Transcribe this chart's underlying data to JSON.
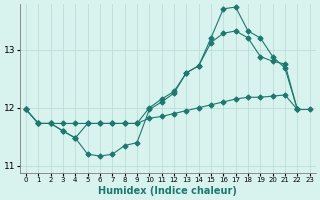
{
  "color": "#1a7a6e",
  "bg_color": "#d8f2ee",
  "grid_color": "#b8d8d4",
  "xlabel": "Humidex (Indice chaleur)",
  "xlim": [
    -0.5,
    23.5
  ],
  "ylim": [
    10.88,
    13.78
  ],
  "yticks": [
    11,
    12,
    13
  ],
  "xticks": [
    0,
    1,
    2,
    3,
    4,
    5,
    6,
    7,
    8,
    9,
    10,
    11,
    12,
    13,
    14,
    15,
    16,
    17,
    18,
    19,
    20,
    21,
    22,
    23
  ],
  "line_flat_x": [
    0,
    1,
    2,
    3,
    4,
    5,
    6,
    7,
    8,
    9,
    10,
    11,
    12,
    13,
    14,
    15,
    16,
    17,
    18,
    19,
    20,
    21,
    22,
    23
  ],
  "line_flat_y": [
    11.97,
    11.73,
    11.73,
    11.73,
    11.73,
    11.73,
    11.73,
    11.73,
    11.73,
    11.73,
    11.82,
    11.85,
    11.9,
    11.95,
    12.0,
    12.05,
    12.1,
    12.15,
    12.18,
    12.18,
    12.2,
    12.22,
    11.97,
    11.97
  ],
  "line_mid_x": [
    0,
    1,
    2,
    3,
    4,
    5,
    6,
    7,
    8,
    9,
    10,
    11,
    12,
    13,
    14,
    15,
    16,
    17,
    18,
    19,
    20,
    21,
    22
  ],
  "line_mid_y": [
    11.97,
    11.73,
    11.73,
    11.6,
    11.48,
    11.73,
    11.73,
    11.73,
    11.73,
    11.73,
    12.0,
    12.15,
    12.28,
    12.6,
    12.72,
    13.12,
    13.28,
    13.32,
    13.2,
    12.88,
    12.8,
    12.75,
    11.97
  ],
  "line_top_x": [
    0,
    1,
    2,
    3,
    4,
    5,
    6,
    7,
    8,
    9,
    10,
    11,
    12,
    13,
    14,
    15,
    16,
    17,
    18,
    19,
    20,
    21,
    22
  ],
  "line_top_y": [
    11.97,
    11.73,
    11.73,
    11.6,
    11.48,
    11.2,
    11.17,
    11.2,
    11.35,
    11.4,
    11.97,
    12.1,
    12.25,
    12.6,
    12.72,
    13.2,
    13.7,
    13.73,
    13.32,
    13.2,
    12.88,
    12.68,
    11.97
  ],
  "marker_size": 2.5,
  "lw": 0.8
}
